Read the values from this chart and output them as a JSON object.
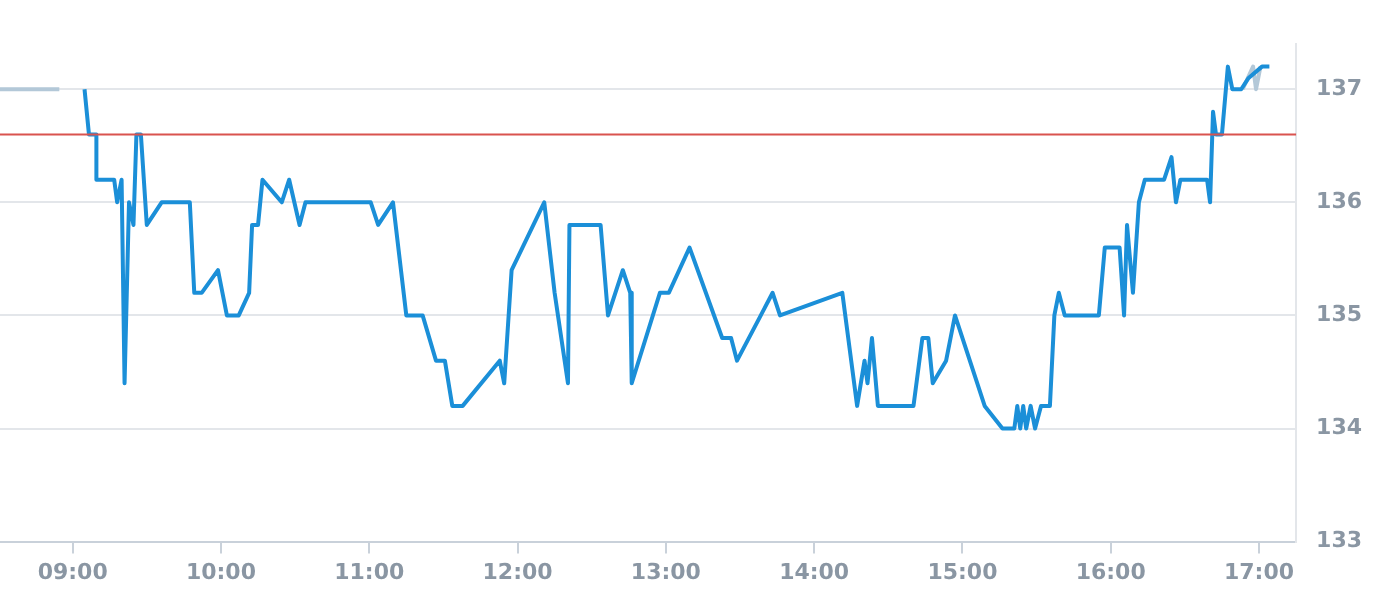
{
  "chart_data": {
    "type": "line",
    "xlim": [
      8.51,
      17.25
    ],
    "ylim": [
      133,
      137.4
    ],
    "xticks": [
      {
        "value": 9,
        "label": "09:00"
      },
      {
        "value": 10,
        "label": "10:00"
      },
      {
        "value": 11,
        "label": "11:00"
      },
      {
        "value": 12,
        "label": "12:00"
      },
      {
        "value": 13,
        "label": "13:00"
      },
      {
        "value": 14,
        "label": "14:00"
      },
      {
        "value": 15,
        "label": "15:00"
      },
      {
        "value": 16,
        "label": "16:00"
      },
      {
        "value": 17,
        "label": "17:00"
      }
    ],
    "yticks": [
      133,
      134,
      135,
      136,
      137
    ],
    "grid": "y",
    "legend": false,
    "marker": "none",
    "line_style": "solid",
    "ref_lines": [
      {
        "axis": "y",
        "value": 136.6,
        "color": "#d9534f"
      }
    ],
    "series": [
      {
        "color": "#1b8fd8",
        "x": [
          9.08,
          9.11,
          9.16,
          9.16,
          9.28,
          9.3,
          9.33,
          9.35,
          9.38,
          9.41,
          9.43,
          9.46,
          9.5,
          9.6,
          9.79,
          9.82,
          9.87,
          9.98,
          10.04,
          10.12,
          10.19,
          10.21,
          10.25,
          10.28,
          10.41,
          10.46,
          10.53,
          10.57,
          11.01,
          11.06,
          11.16,
          11.25,
          11.36,
          11.45,
          11.51,
          11.56,
          11.63,
          11.88,
          11.91,
          11.96,
          12.18,
          12.25,
          12.34,
          12.35,
          12.56,
          12.61,
          12.71,
          12.76,
          12.77,
          12.96,
          13.02,
          13.16,
          13.38,
          13.44,
          13.48,
          13.72,
          13.77,
          14.19,
          14.29,
          14.34,
          14.36,
          14.39,
          14.43,
          14.67,
          14.73,
          14.77,
          14.8,
          14.89,
          14.95,
          15.15,
          15.27,
          15.35,
          15.37,
          15.39,
          15.41,
          15.43,
          15.46,
          15.49,
          15.53,
          15.59,
          15.62,
          15.65,
          15.69,
          15.92,
          15.96,
          16.06,
          16.09,
          16.11,
          16.15,
          16.19,
          16.23,
          16.36,
          16.41,
          16.44,
          16.47,
          16.65,
          16.67,
          16.69,
          16.71,
          16.75,
          16.79,
          16.82,
          16.88,
          16.93,
          17.02,
          17.07
        ],
        "values": [
          137.0,
          136.6,
          136.6,
          136.2,
          136.2,
          136.0,
          136.2,
          134.4,
          136.0,
          135.8,
          136.6,
          136.6,
          135.8,
          136.0,
          136.0,
          135.2,
          135.2,
          135.4,
          135.0,
          135.0,
          135.2,
          135.8,
          135.8,
          136.2,
          136.0,
          136.2,
          135.8,
          136.0,
          136.0,
          135.8,
          136.0,
          135.0,
          135.0,
          134.6,
          134.6,
          134.2,
          134.2,
          134.6,
          134.4,
          135.4,
          136.0,
          135.2,
          134.4,
          135.8,
          135.8,
          135.0,
          135.4,
          135.2,
          134.4,
          135.2,
          135.2,
          135.6,
          134.8,
          134.8,
          134.6,
          135.2,
          135.0,
          135.2,
          134.2,
          134.6,
          134.4,
          134.8,
          134.2,
          134.2,
          134.8,
          134.8,
          134.4,
          134.6,
          135.0,
          134.2,
          134.0,
          134.0,
          134.2,
          134.0,
          134.2,
          134.0,
          134.2,
          134.0,
          134.2,
          134.2,
          135.0,
          135.2,
          135.0,
          135.0,
          135.6,
          135.6,
          135.0,
          135.8,
          135.2,
          136.0,
          136.2,
          136.2,
          136.4,
          136.0,
          136.2,
          136.2,
          136.0,
          136.8,
          136.6,
          136.6,
          137.2,
          137.0,
          137.0,
          137.1,
          137.2,
          137.2
        ]
      },
      {
        "color": "#b3c8d8",
        "x": [
          8.51,
          8.91,
          null,
          16.89,
          16.96,
          16.98,
          17.01
        ],
        "values": [
          137.0,
          137.0,
          null,
          137.0,
          137.2,
          137.0,
          137.2
        ]
      }
    ]
  }
}
